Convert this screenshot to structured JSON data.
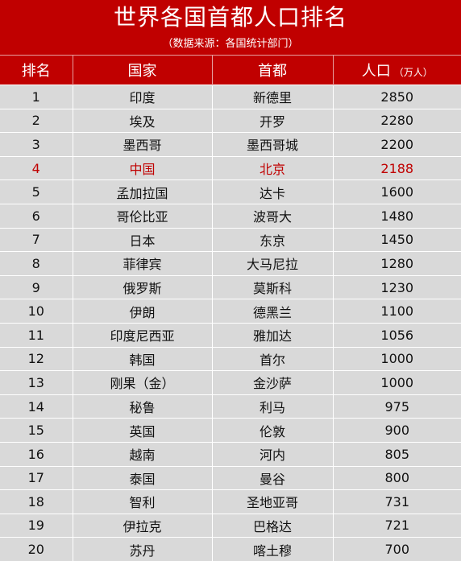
{
  "header": {
    "title": "世界各国首都人口排名",
    "subtitle": "（数据来源：各国统计部门）"
  },
  "columns": {
    "rank": "排名",
    "country": "国家",
    "capital": "首都",
    "population": "人口",
    "population_unit": "（万人）"
  },
  "colors": {
    "header_bg": "#c00000",
    "highlight_text": "#c00000",
    "row_bg": "#d9d9d9"
  },
  "rows": [
    {
      "rank": "1",
      "country": "印度",
      "capital": "新德里",
      "population": "2850"
    },
    {
      "rank": "2",
      "country": "埃及",
      "capital": "开罗",
      "population": "2280"
    },
    {
      "rank": "3",
      "country": "墨西哥",
      "capital": "墨西哥城",
      "population": "2200"
    },
    {
      "rank": "4",
      "country": "中国",
      "capital": "北京",
      "population": "2188",
      "highlight": true
    },
    {
      "rank": "5",
      "country": "孟加拉国",
      "capital": "达卡",
      "population": "1600"
    },
    {
      "rank": "6",
      "country": "哥伦比亚",
      "capital": "波哥大",
      "population": "1480"
    },
    {
      "rank": "7",
      "country": "日本",
      "capital": "东京",
      "population": "1450"
    },
    {
      "rank": "8",
      "country": "菲律宾",
      "capital": "大马尼拉",
      "population": "1280"
    },
    {
      "rank": "9",
      "country": "俄罗斯",
      "capital": "莫斯科",
      "population": "1230"
    },
    {
      "rank": "10",
      "country": "伊朗",
      "capital": "德黑兰",
      "population": "1100"
    },
    {
      "rank": "11",
      "country": "印度尼西亚",
      "capital": "雅加达",
      "population": "1056"
    },
    {
      "rank": "12",
      "country": "韩国",
      "capital": "首尔",
      "population": "1000"
    },
    {
      "rank": "13",
      "country": "刚果（金）",
      "capital": "金沙萨",
      "population": "1000"
    },
    {
      "rank": "14",
      "country": "秘鲁",
      "capital": "利马",
      "population": "975"
    },
    {
      "rank": "15",
      "country": "英国",
      "capital": "伦敦",
      "population": "900"
    },
    {
      "rank": "16",
      "country": "越南",
      "capital": "河内",
      "population": "805"
    },
    {
      "rank": "17",
      "country": "泰国",
      "capital": "曼谷",
      "population": "800"
    },
    {
      "rank": "18",
      "country": "智利",
      "capital": "圣地亚哥",
      "population": "731"
    },
    {
      "rank": "19",
      "country": "伊拉克",
      "capital": "巴格达",
      "population": "721"
    },
    {
      "rank": "20",
      "country": "苏丹",
      "capital": "喀土穆",
      "population": "700"
    }
  ]
}
